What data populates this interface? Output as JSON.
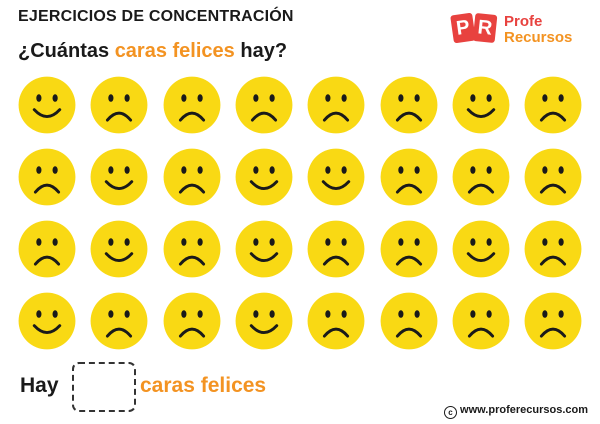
{
  "header": {
    "title": "EJERCICIOS DE CONCENTRACIÓN",
    "question_start": "¿Cuántas ",
    "question_accent": "caras felices",
    "question_end": " hay?"
  },
  "logo": {
    "letter_p": "P",
    "letter_r": "R",
    "line1": "Profe",
    "line2": "Recursos"
  },
  "colors": {
    "face_fill": "#f9d914",
    "feature": "#1a1a1a",
    "accent": "#f39322",
    "logo_red": "#e8423f"
  },
  "grid": {
    "rows": [
      [
        "happy",
        "sad",
        "sad",
        "sad",
        "sad",
        "sad",
        "happy",
        "sad"
      ],
      [
        "sad",
        "happy",
        "sad",
        "happy",
        "happy",
        "sad",
        "sad",
        "sad"
      ],
      [
        "sad",
        "happy",
        "sad",
        "happy",
        "sad",
        "sad",
        "happy",
        "sad"
      ],
      [
        "happy",
        "sad",
        "sad",
        "happy",
        "sad",
        "sad",
        "sad",
        "sad"
      ]
    ]
  },
  "answer": {
    "prefix": "Hay",
    "suffix": "caras felices"
  },
  "footer": {
    "copyright_symbol": "c",
    "url": "www.proferecursos.com"
  }
}
